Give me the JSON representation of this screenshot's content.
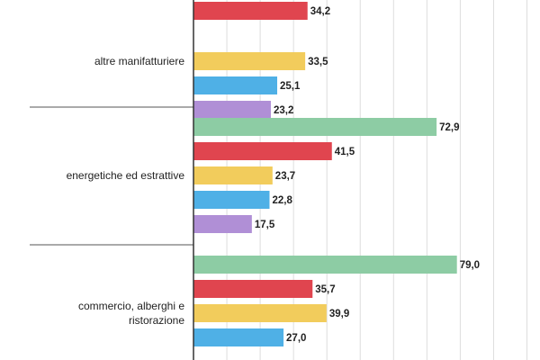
{
  "chart_data": {
    "type": "bar",
    "orientation": "horizontal",
    "categories": [
      {
        "name": "",
        "label_lines": []
      },
      {
        "name": "altre manifatturiere",
        "label_lines": [
          "altre manifatturiere"
        ]
      },
      {
        "name": "energetiche ed estrattive",
        "label_lines": [
          "energetiche ed estrattive"
        ]
      },
      {
        "name": "commercio, alberghi e ristorazione",
        "label_lines": [
          "commercio, alberghi e",
          "ristorazione"
        ]
      }
    ],
    "series": [
      {
        "color": "#8dcca4",
        "values": [
          null,
          null,
          72.9,
          79.0
        ],
        "labels": [
          "",
          "",
          "72,9",
          "79,0"
        ]
      },
      {
        "color": "#e0454f",
        "values": [
          34.2,
          null,
          41.5,
          35.7
        ],
        "labels": [
          "34,2",
          "",
          "41,5",
          "35,7"
        ]
      },
      {
        "color": "#f2cc5c",
        "values": [
          null,
          33.5,
          23.7,
          39.9
        ],
        "labels": [
          "",
          "33,5",
          "23,7",
          "39,9"
        ]
      },
      {
        "color": "#4fb0e6",
        "values": [
          null,
          25.1,
          22.8,
          27.0
        ],
        "labels": [
          "",
          "25,1",
          "22,8",
          "27,0"
        ]
      },
      {
        "color": "#b08fd6",
        "values": [
          null,
          23.2,
          17.5,
          null
        ],
        "labels": [
          "",
          "23,2",
          "17,5",
          ""
        ]
      }
    ],
    "xlim": [
      0,
      100
    ],
    "grid": true,
    "legend": "none"
  }
}
